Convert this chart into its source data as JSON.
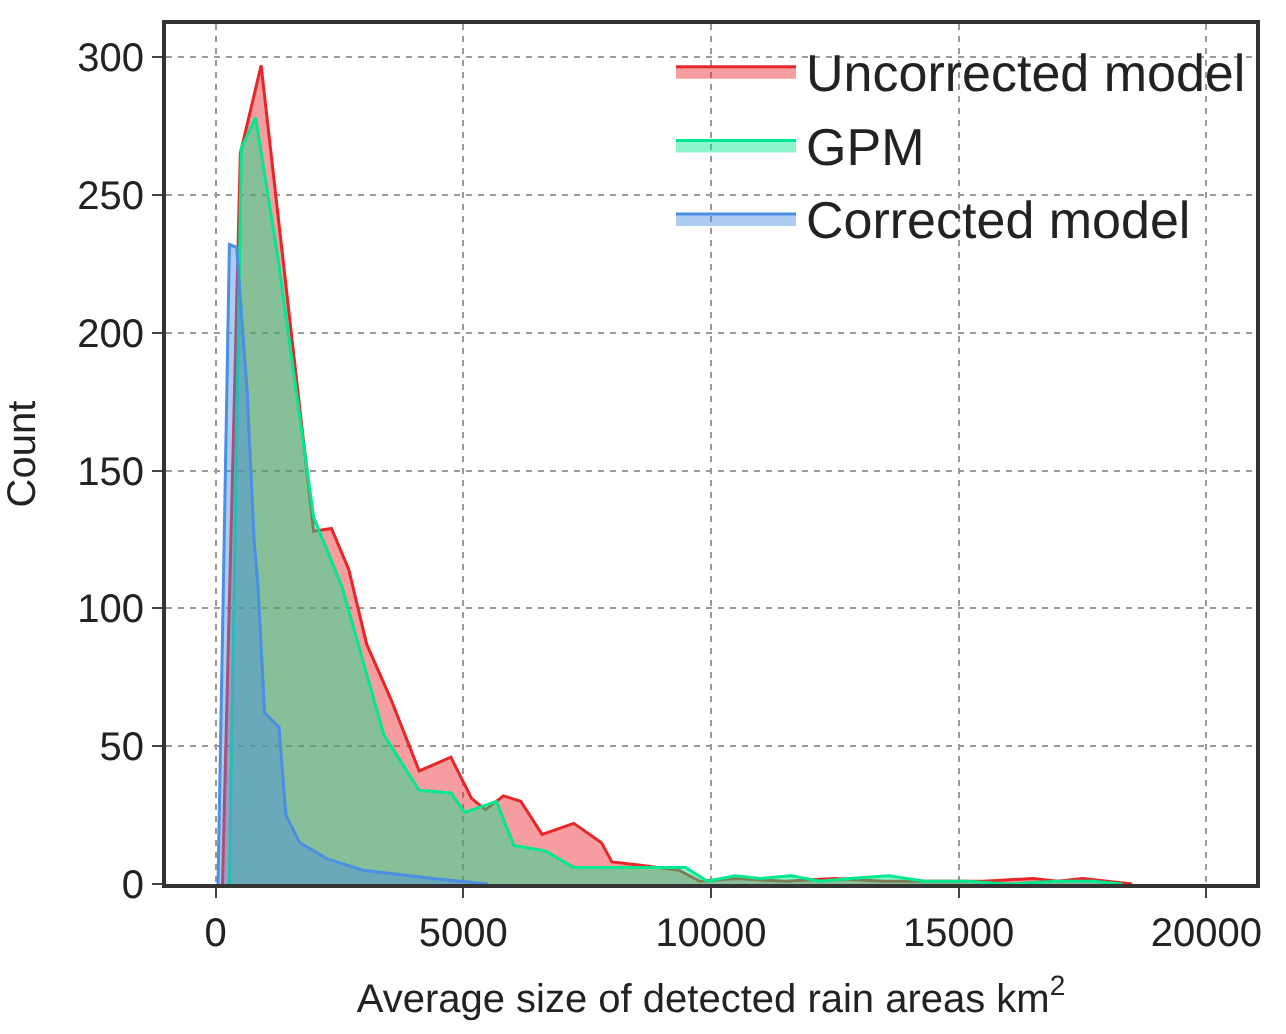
{
  "chart_data": {
    "type": "area",
    "xlabel": "Average size of detected rain areas km$^{2}$",
    "ylabel": "Count",
    "xlim": [
      -1000,
      21000
    ],
    "ylim": [
      0,
      312
    ],
    "xticks": [
      0,
      5000,
      10000,
      15000,
      20000
    ],
    "yticks": [
      0,
      50,
      100,
      150,
      200,
      250,
      300
    ],
    "grid": true,
    "legend": "top right",
    "series": [
      {
        "name": "Uncorrected model",
        "color": "#e8262a",
        "x": [
          140,
          500,
          920,
          1980,
          2340,
          2690,
          3050,
          3540,
          4110,
          4750,
          5170,
          5450,
          5810,
          6160,
          6590,
          7230,
          7790,
          8000,
          8500,
          9350,
          9780,
          10500,
          11500,
          12500,
          13500,
          14500,
          15500,
          16500,
          17000,
          17500,
          18000,
          18500
        ],
        "values": [
          0,
          265,
          297,
          128,
          129,
          114,
          87,
          67,
          41,
          46,
          31,
          27,
          32,
          30,
          18,
          22,
          15,
          8,
          7,
          5,
          1,
          2,
          1,
          2,
          1,
          1,
          1,
          2,
          1,
          2,
          1,
          0
        ]
      },
      {
        "name": "GPM",
        "color": "#00e890",
        "x": [
          280,
          520,
          810,
          1260,
          1980,
          2550,
          3400,
          4110,
          4750,
          5030,
          5670,
          6020,
          6660,
          7230,
          8500,
          9490,
          9920,
          10480,
          11000,
          11620,
          12200,
          12800,
          13600,
          14300,
          15160,
          16000,
          17000,
          17710,
          18300
        ],
        "values": [
          0,
          267,
          278,
          227,
          133,
          108,
          54,
          34,
          33,
          26,
          30,
          14,
          12,
          6,
          6,
          6,
          1,
          3,
          2,
          3,
          1,
          2,
          3,
          1,
          1,
          0,
          1,
          1,
          0
        ]
      },
      {
        "name": "Corrected model",
        "color": "#4a8fe2",
        "x": [
          50,
          140,
          280,
          425,
          640,
          780,
          850,
          990,
          1280,
          1420,
          1700,
          2270,
          2980,
          4390,
          5500
        ],
        "values": [
          0,
          90,
          232,
          231,
          178,
          124,
          110,
          62,
          57,
          25,
          15,
          9,
          5,
          2,
          0
        ]
      }
    ]
  }
}
